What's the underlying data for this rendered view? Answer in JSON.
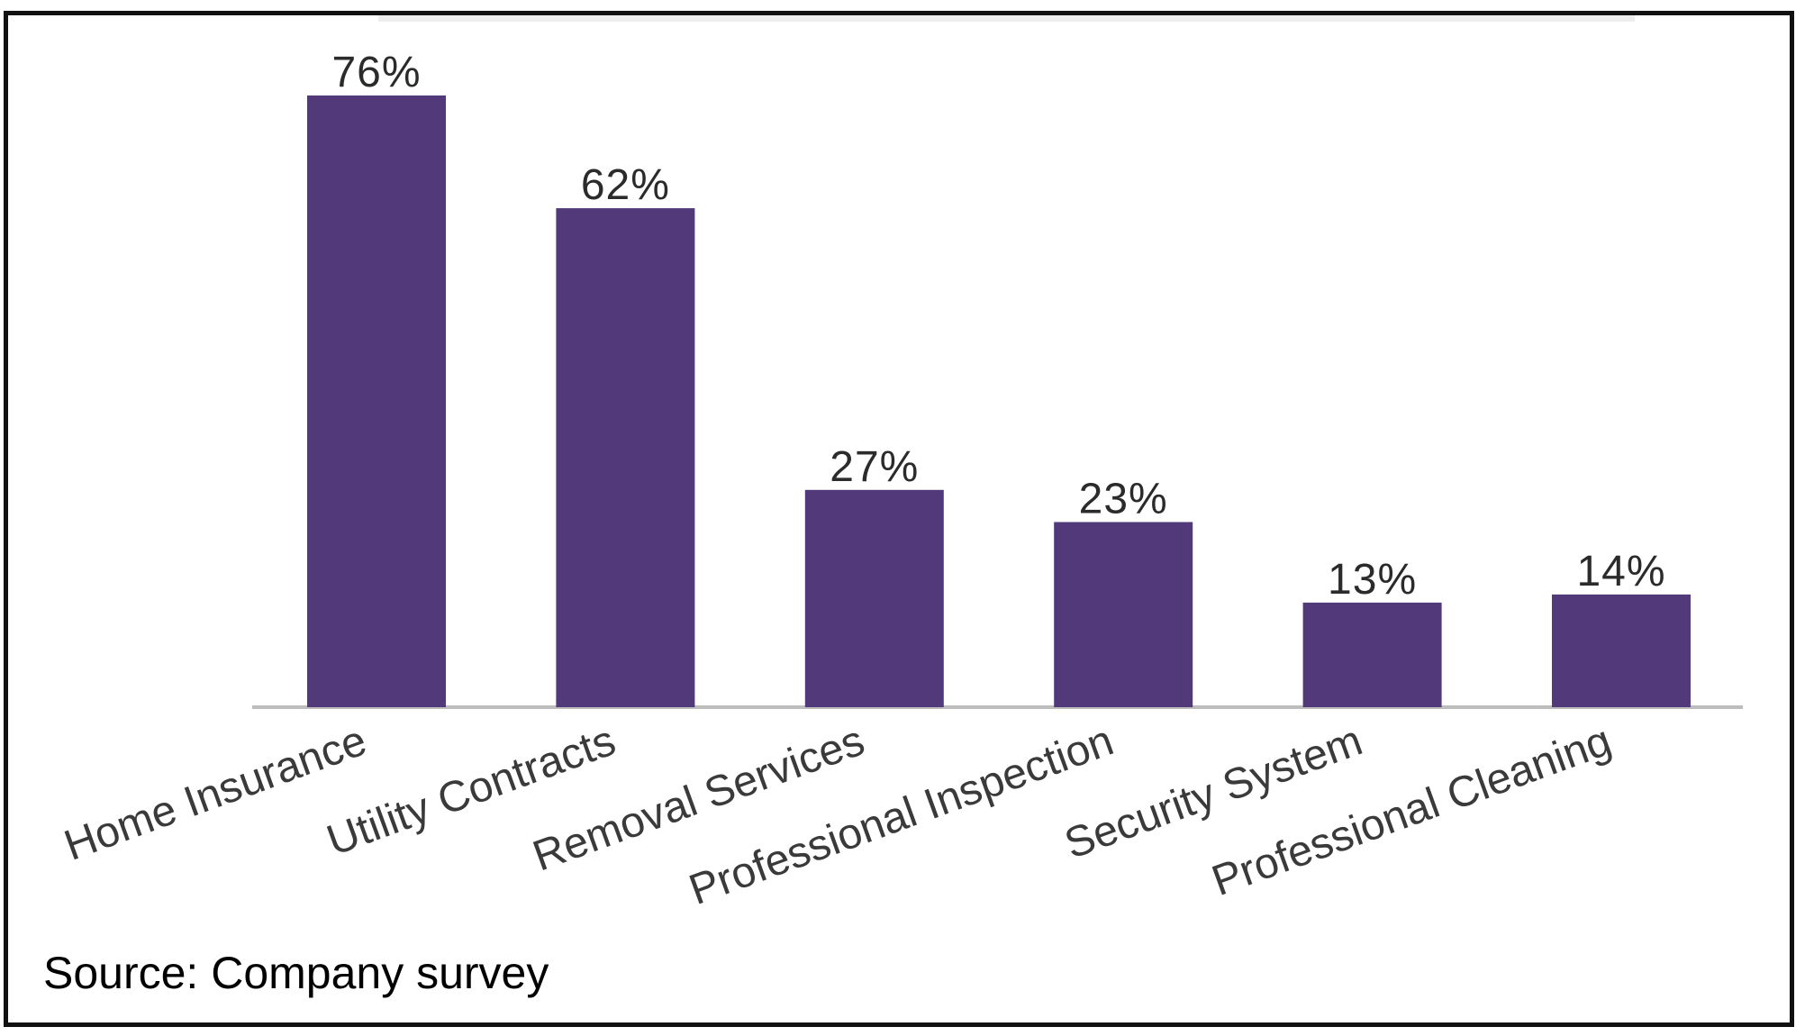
{
  "chart_data": {
    "type": "bar",
    "categories": [
      "Home Insurance",
      "Utility Contracts",
      "Removal Services",
      "Professional Inspection",
      "Security System",
      "Professional Cleaning"
    ],
    "values": [
      76,
      62,
      27,
      23,
      13,
      14
    ],
    "value_labels": [
      "76%",
      "62%",
      "27%",
      "23%",
      "13%",
      "14%"
    ],
    "title": "",
    "xlabel": "",
    "ylabel": "",
    "ylim": [
      0,
      76
    ],
    "grid": false,
    "legend": "none",
    "bar_color": "#523a7a",
    "axis_color": "#bdbdbd",
    "text_color": "#2b2b2b"
  },
  "source_note": "Source: Company survey"
}
